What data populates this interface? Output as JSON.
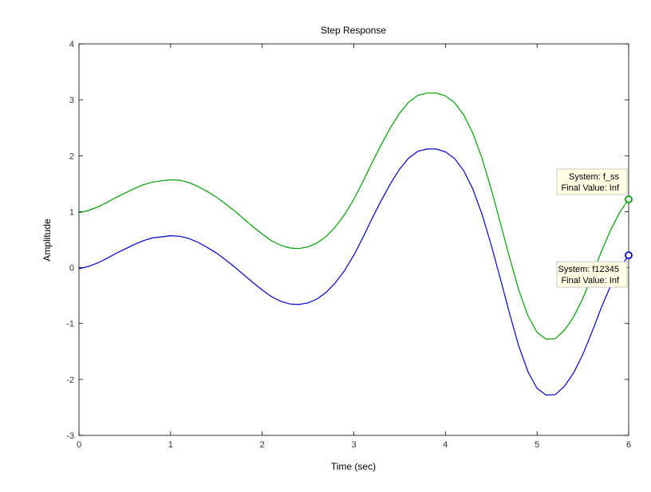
{
  "chart_data": {
    "type": "line",
    "title": "Step Response",
    "xlabel": "Time (sec)",
    "ylabel": "Amplitude",
    "xlim": [
      0,
      6
    ],
    "ylim": [
      -3,
      4
    ],
    "xticks": [
      0,
      1,
      2,
      3,
      4,
      5,
      6
    ],
    "yticks": [
      -3,
      -2,
      -1,
      0,
      1,
      2,
      3,
      4
    ],
    "grid": false,
    "series": [
      {
        "name": "f_ss",
        "color": "#00a000",
        "x": [
          0,
          0.1,
          0.2,
          0.3,
          0.4,
          0.5,
          0.6,
          0.7,
          0.8,
          0.9,
          1.0,
          1.1,
          1.2,
          1.3,
          1.4,
          1.5,
          1.6,
          1.7,
          1.8,
          1.9,
          2.0,
          2.1,
          2.2,
          2.3,
          2.4,
          2.5,
          2.6,
          2.7,
          2.8,
          2.9,
          3.0,
          3.1,
          3.2,
          3.3,
          3.4,
          3.5,
          3.6,
          3.7,
          3.8,
          3.9,
          4.0,
          4.1,
          4.2,
          4.3,
          4.4,
          4.5,
          4.6,
          4.7,
          4.8,
          4.9,
          5.0,
          5.1,
          5.2,
          5.3,
          5.4,
          5.5,
          5.6,
          5.7,
          5.8,
          5.9,
          6.0
        ],
        "y": [
          0.98,
          1.02,
          1.08,
          1.16,
          1.25,
          1.33,
          1.41,
          1.48,
          1.53,
          1.55,
          1.57,
          1.56,
          1.52,
          1.45,
          1.36,
          1.26,
          1.14,
          1.01,
          0.87,
          0.73,
          0.6,
          0.48,
          0.4,
          0.35,
          0.34,
          0.37,
          0.44,
          0.56,
          0.73,
          0.95,
          1.22,
          1.54,
          1.88,
          2.2,
          2.5,
          2.76,
          2.96,
          3.08,
          3.12,
          3.12,
          3.07,
          2.95,
          2.73,
          2.4,
          1.95,
          1.4,
          0.8,
          0.18,
          -0.4,
          -0.86,
          -1.16,
          -1.28,
          -1.27,
          -1.12,
          -0.88,
          -0.55,
          -0.15,
          0.28,
          0.66,
          0.98,
          1.22
        ]
      },
      {
        "name": "f12345",
        "color": "#0000cc",
        "x": [
          0,
          0.1,
          0.2,
          0.3,
          0.4,
          0.5,
          0.6,
          0.7,
          0.8,
          0.9,
          1.0,
          1.1,
          1.2,
          1.3,
          1.4,
          1.5,
          1.6,
          1.7,
          1.8,
          1.9,
          2.0,
          2.1,
          2.2,
          2.3,
          2.4,
          2.5,
          2.6,
          2.7,
          2.8,
          2.9,
          3.0,
          3.1,
          3.2,
          3.3,
          3.4,
          3.5,
          3.6,
          3.7,
          3.8,
          3.9,
          4.0,
          4.1,
          4.2,
          4.3,
          4.4,
          4.5,
          4.6,
          4.7,
          4.8,
          4.9,
          5.0,
          5.1,
          5.2,
          5.3,
          5.4,
          5.5,
          5.6,
          5.7,
          5.8,
          5.9,
          6.0
        ],
        "y": [
          -0.02,
          0.02,
          0.08,
          0.16,
          0.25,
          0.33,
          0.41,
          0.48,
          0.53,
          0.55,
          0.57,
          0.56,
          0.52,
          0.45,
          0.36,
          0.26,
          0.14,
          0.01,
          -0.13,
          -0.27,
          -0.4,
          -0.52,
          -0.6,
          -0.65,
          -0.66,
          -0.63,
          -0.56,
          -0.44,
          -0.27,
          -0.05,
          0.22,
          0.54,
          0.88,
          1.2,
          1.5,
          1.76,
          1.96,
          2.08,
          2.12,
          2.12,
          2.07,
          1.95,
          1.73,
          1.4,
          0.95,
          0.4,
          -0.2,
          -0.82,
          -1.4,
          -1.86,
          -2.16,
          -2.28,
          -2.27,
          -2.12,
          -1.88,
          -1.55,
          -1.15,
          -0.72,
          -0.34,
          -0.02,
          0.22
        ]
      }
    ],
    "annotations": [
      {
        "series": "f_ss",
        "line1": "System: f_ss",
        "line2": "Final Value: Inf",
        "x": 6,
        "y": 1.22
      },
      {
        "series": "f12345",
        "line1": "System: f12345",
        "line2": "Final Value: Inf",
        "x": 6,
        "y": 0.22
      }
    ]
  }
}
